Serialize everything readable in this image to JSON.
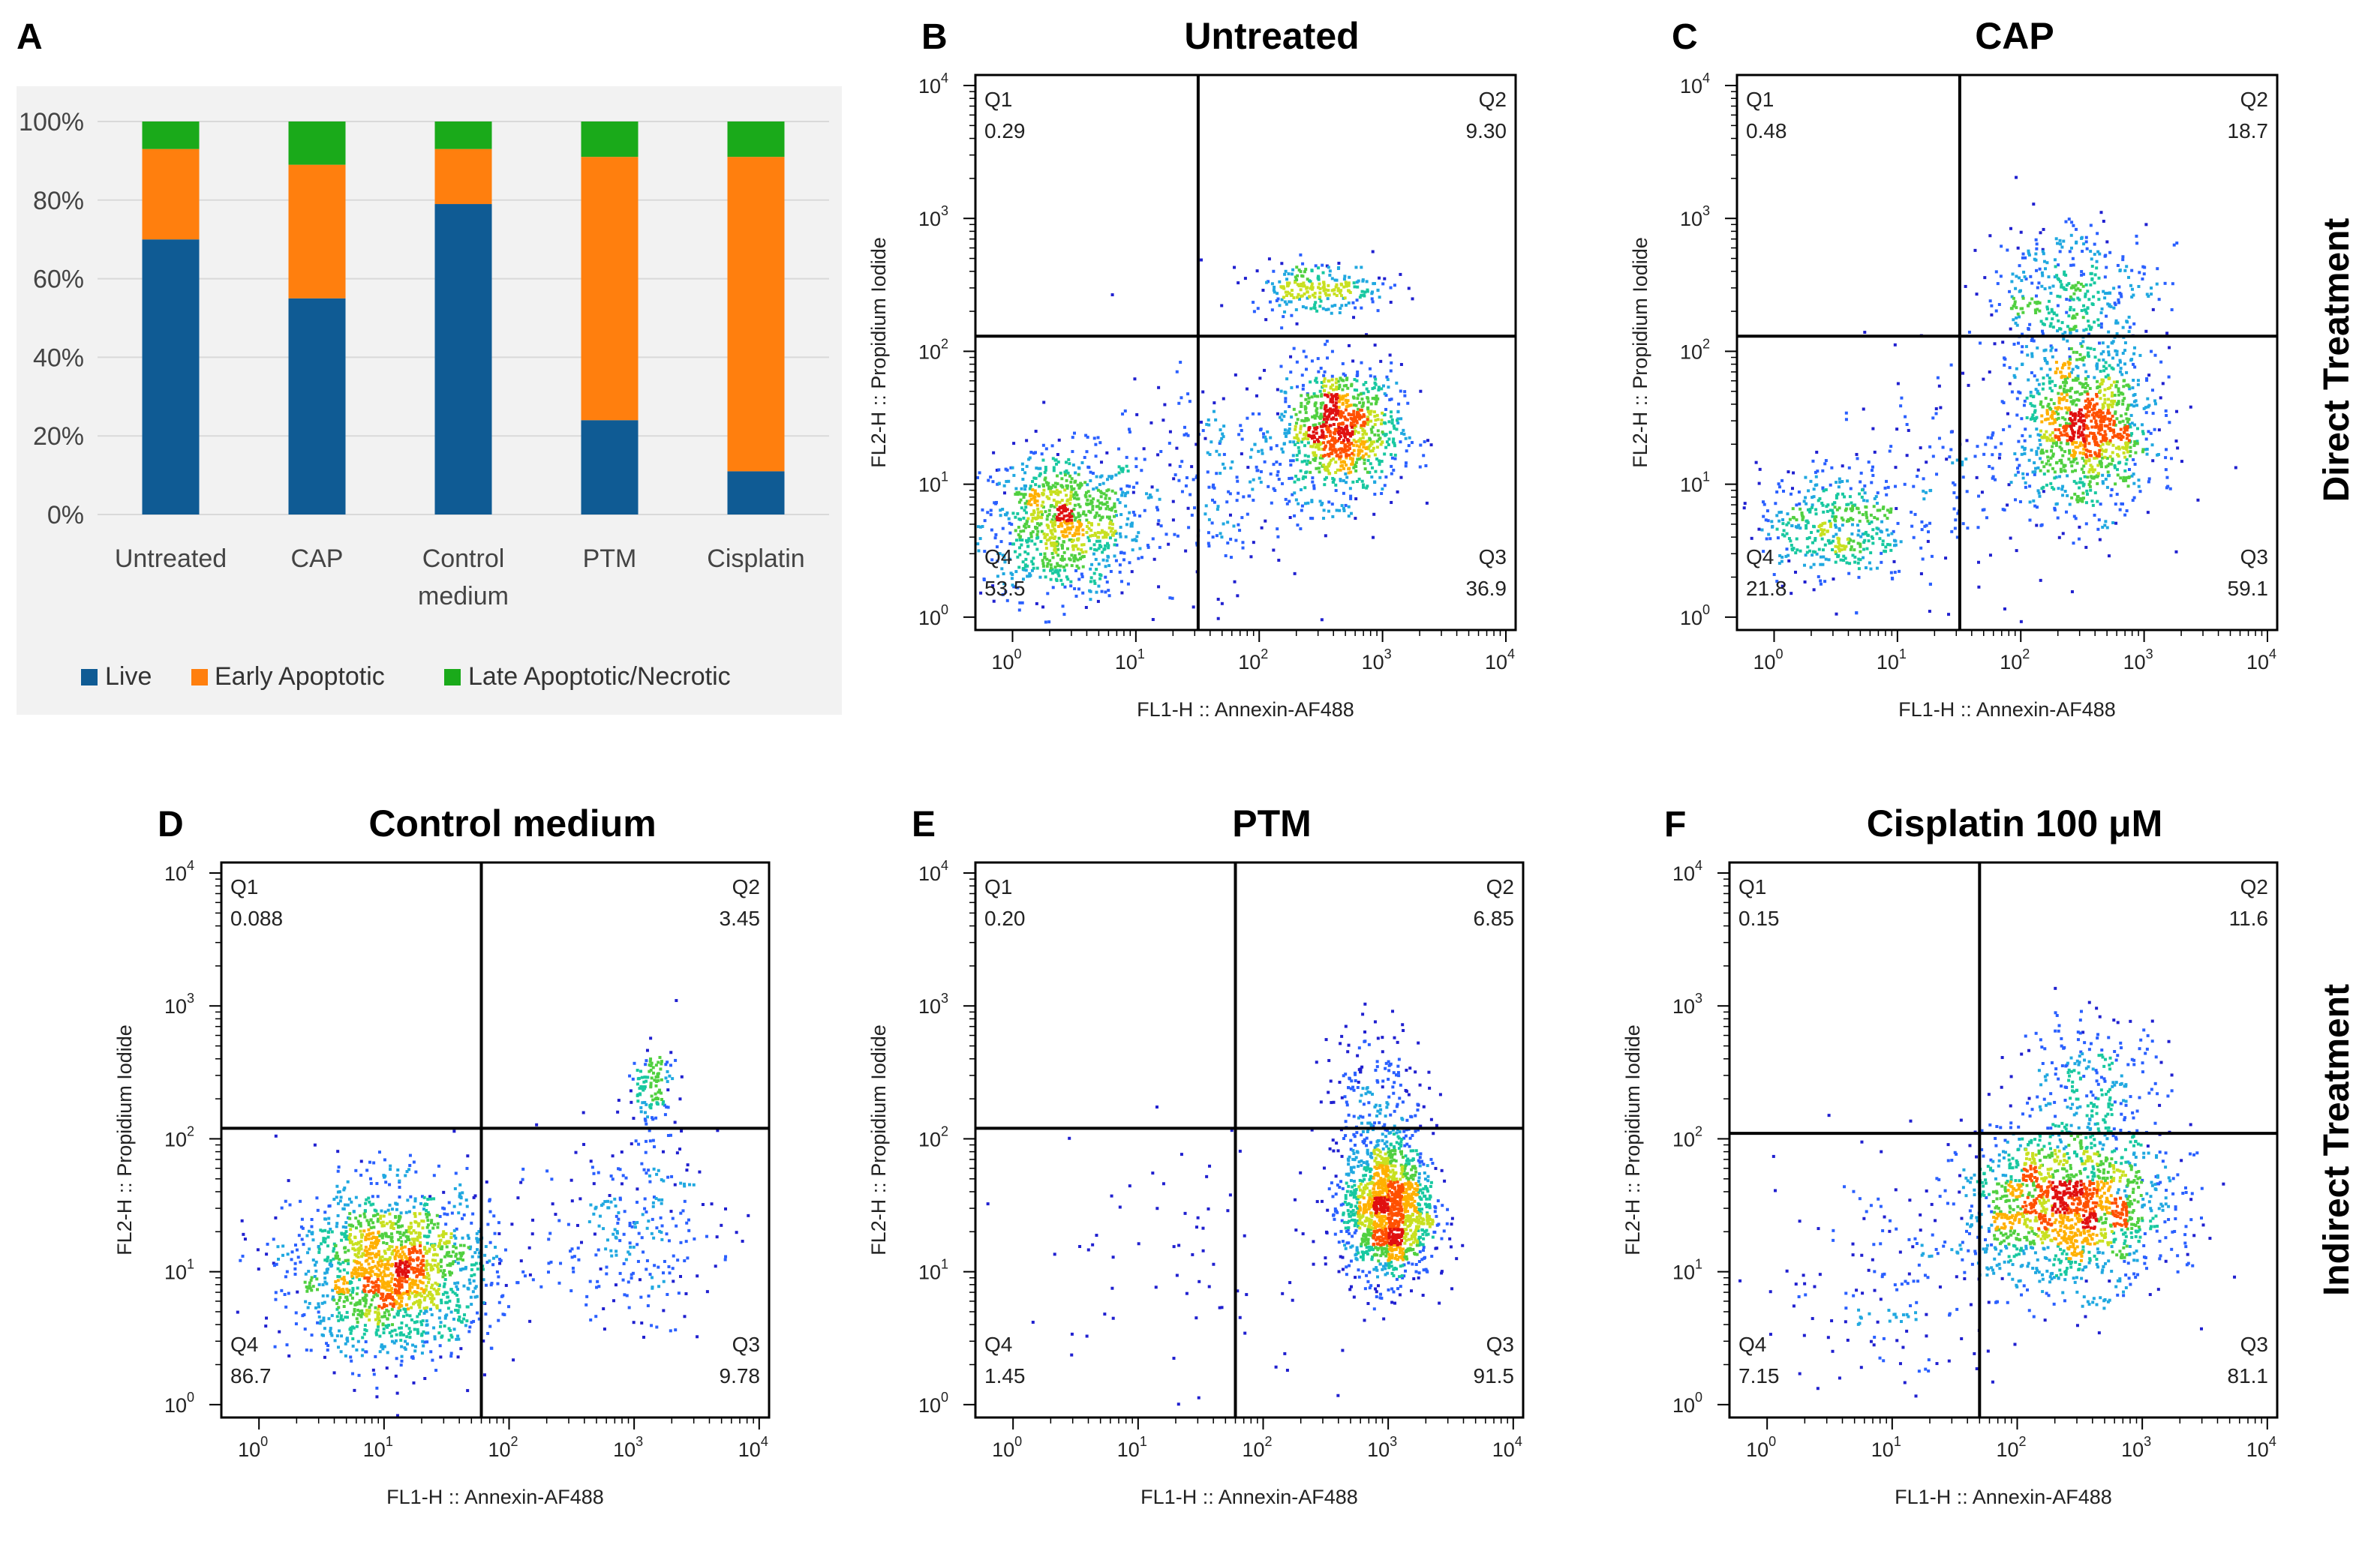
{
  "chart_data": [
    {
      "panel_letter": "A",
      "type": "bar",
      "stacked": true,
      "categories": [
        "Untreated",
        "CAP",
        "Control medium",
        "PTM",
        "Cisplatin"
      ],
      "series": [
        {
          "name": "Live",
          "values": [
            70,
            55,
            79,
            24,
            11
          ],
          "color": "#0f5b94"
        },
        {
          "name": "Early Apoptotic",
          "values": [
            23,
            34,
            14,
            67,
            80
          ],
          "color": "#ff7f0e"
        },
        {
          "name": "Late Apoptotic/Necrotic",
          "values": [
            7,
            11,
            7,
            9,
            9
          ],
          "color": "#1aaa1a"
        }
      ],
      "ylim": [
        0,
        100
      ],
      "ytick_labels": [
        "0%",
        "20%",
        "40%",
        "60%",
        "80%",
        "100%"
      ],
      "legend_position": "bottom",
      "grid": true
    },
    {
      "panel_letter": "B",
      "type": "scatter",
      "title": "Untreated",
      "xlabel": "FL1-H :: Annexin-AF488",
      "ylabel": "FL2-H :: Propidium Iodide",
      "x_scale": "log",
      "xlim": [
        0.5,
        12000
      ],
      "ylim": [
        0.8,
        12000
      ],
      "gate_x": 32,
      "gate_y": 130,
      "quadrants": {
        "Q1": "0.29",
        "Q2": "9.30",
        "Q3": "36.9",
        "Q4": "53.5"
      },
      "clusters": [
        {
          "x": 2.5,
          "y": 5,
          "sx": 0.33,
          "sy": 0.28,
          "n": 900
        },
        {
          "x": 450,
          "y": 25,
          "sx": 0.25,
          "sy": 0.25,
          "n": 900
        },
        {
          "x": 300,
          "y": 300,
          "sx": 0.28,
          "sy": 0.1,
          "n": 240
        },
        {
          "x": 40,
          "y": 10,
          "sx": 0.4,
          "sy": 0.4,
          "n": 220
        }
      ]
    },
    {
      "panel_letter": "C",
      "type": "scatter",
      "title": "CAP",
      "xlabel": "FL1-H :: Annexin-AF488",
      "ylabel": "FL2-H :: Propidium Iodide",
      "x_scale": "log",
      "xlim": [
        0.5,
        12000
      ],
      "ylim": [
        0.8,
        12000
      ],
      "gate_x": 32,
      "gate_y": 130,
      "quadrants": {
        "Q1": "0.48",
        "Q2": "18.7",
        "Q3": "59.1",
        "Q4": "21.8"
      },
      "clusters": [
        {
          "x": 3,
          "y": 5,
          "sx": 0.3,
          "sy": 0.22,
          "n": 420
        },
        {
          "x": 350,
          "y": 25,
          "sx": 0.28,
          "sy": 0.3,
          "n": 1000
        },
        {
          "x": 250,
          "y": 250,
          "sx": 0.35,
          "sy": 0.3,
          "n": 420
        },
        {
          "x": 30,
          "y": 10,
          "sx": 0.5,
          "sy": 0.4,
          "n": 160
        }
      ]
    },
    {
      "panel_letter": "D",
      "type": "scatter",
      "title": "Control medium",
      "xlabel": "FL1-H :: Annexin-AF488",
      "ylabel": "FL2-H :: Propidium Iodide",
      "x_scale": "log",
      "xlim": [
        0.5,
        12000
      ],
      "ylim": [
        0.8,
        12000
      ],
      "gate_x": 60,
      "gate_y": 120,
      "quadrants": {
        "Q1": "0.088",
        "Q2": "3.45",
        "Q3": "9.78",
        "Q4": "86.7"
      },
      "clusters": [
        {
          "x": 12,
          "y": 10,
          "sx": 0.4,
          "sy": 0.32,
          "n": 1600
        },
        {
          "x": 1400,
          "y": 250,
          "sx": 0.1,
          "sy": 0.15,
          "n": 120
        },
        {
          "x": 900,
          "y": 20,
          "sx": 0.35,
          "sy": 0.35,
          "n": 260
        }
      ]
    },
    {
      "panel_letter": "E",
      "type": "scatter",
      "title": "PTM",
      "xlabel": "FL1-H :: Annexin-AF488",
      "ylabel": "FL2-H :: Propidium Iodide",
      "x_scale": "log",
      "xlim": [
        0.5,
        12000
      ],
      "ylim": [
        0.8,
        12000
      ],
      "gate_x": 60,
      "gate_y": 120,
      "quadrants": {
        "Q1": "0.20",
        "Q2": "6.85",
        "Q3": "91.5",
        "Q4": "1.45"
      },
      "clusters": [
        {
          "x": 1000,
          "y": 30,
          "sx": 0.18,
          "sy": 0.28,
          "n": 1400
        },
        {
          "x": 800,
          "y": 250,
          "sx": 0.2,
          "sy": 0.25,
          "n": 160
        },
        {
          "x": 30,
          "y": 15,
          "sx": 0.7,
          "sy": 0.6,
          "n": 80
        }
      ]
    },
    {
      "panel_letter": "F",
      "type": "scatter",
      "title": "Cisplatin 100 μM",
      "xlabel": "FL1-H :: Annexin-AF488",
      "ylabel": "FL2-H :: Propidium Iodide",
      "x_scale": "log",
      "xlim": [
        0.5,
        12000
      ],
      "ylim": [
        0.8,
        12000
      ],
      "gate_x": 50,
      "gate_y": 110,
      "quadrants": {
        "Q1": "0.15",
        "Q2": "11.6",
        "Q3": "81.1",
        "Q4": "7.15"
      },
      "clusters": [
        {
          "x": 250,
          "y": 30,
          "sx": 0.42,
          "sy": 0.3,
          "n": 1500
        },
        {
          "x": 400,
          "y": 250,
          "sx": 0.3,
          "sy": 0.28,
          "n": 240
        },
        {
          "x": 10,
          "y": 8,
          "sx": 0.45,
          "sy": 0.45,
          "n": 150
        }
      ]
    }
  ],
  "side_labels": [
    "Direct Treatment",
    "Indirect Treatment"
  ],
  "axis_tick_labels": {
    "base": "10",
    "exponents": [
      "0",
      "1",
      "2",
      "3",
      "4"
    ]
  }
}
